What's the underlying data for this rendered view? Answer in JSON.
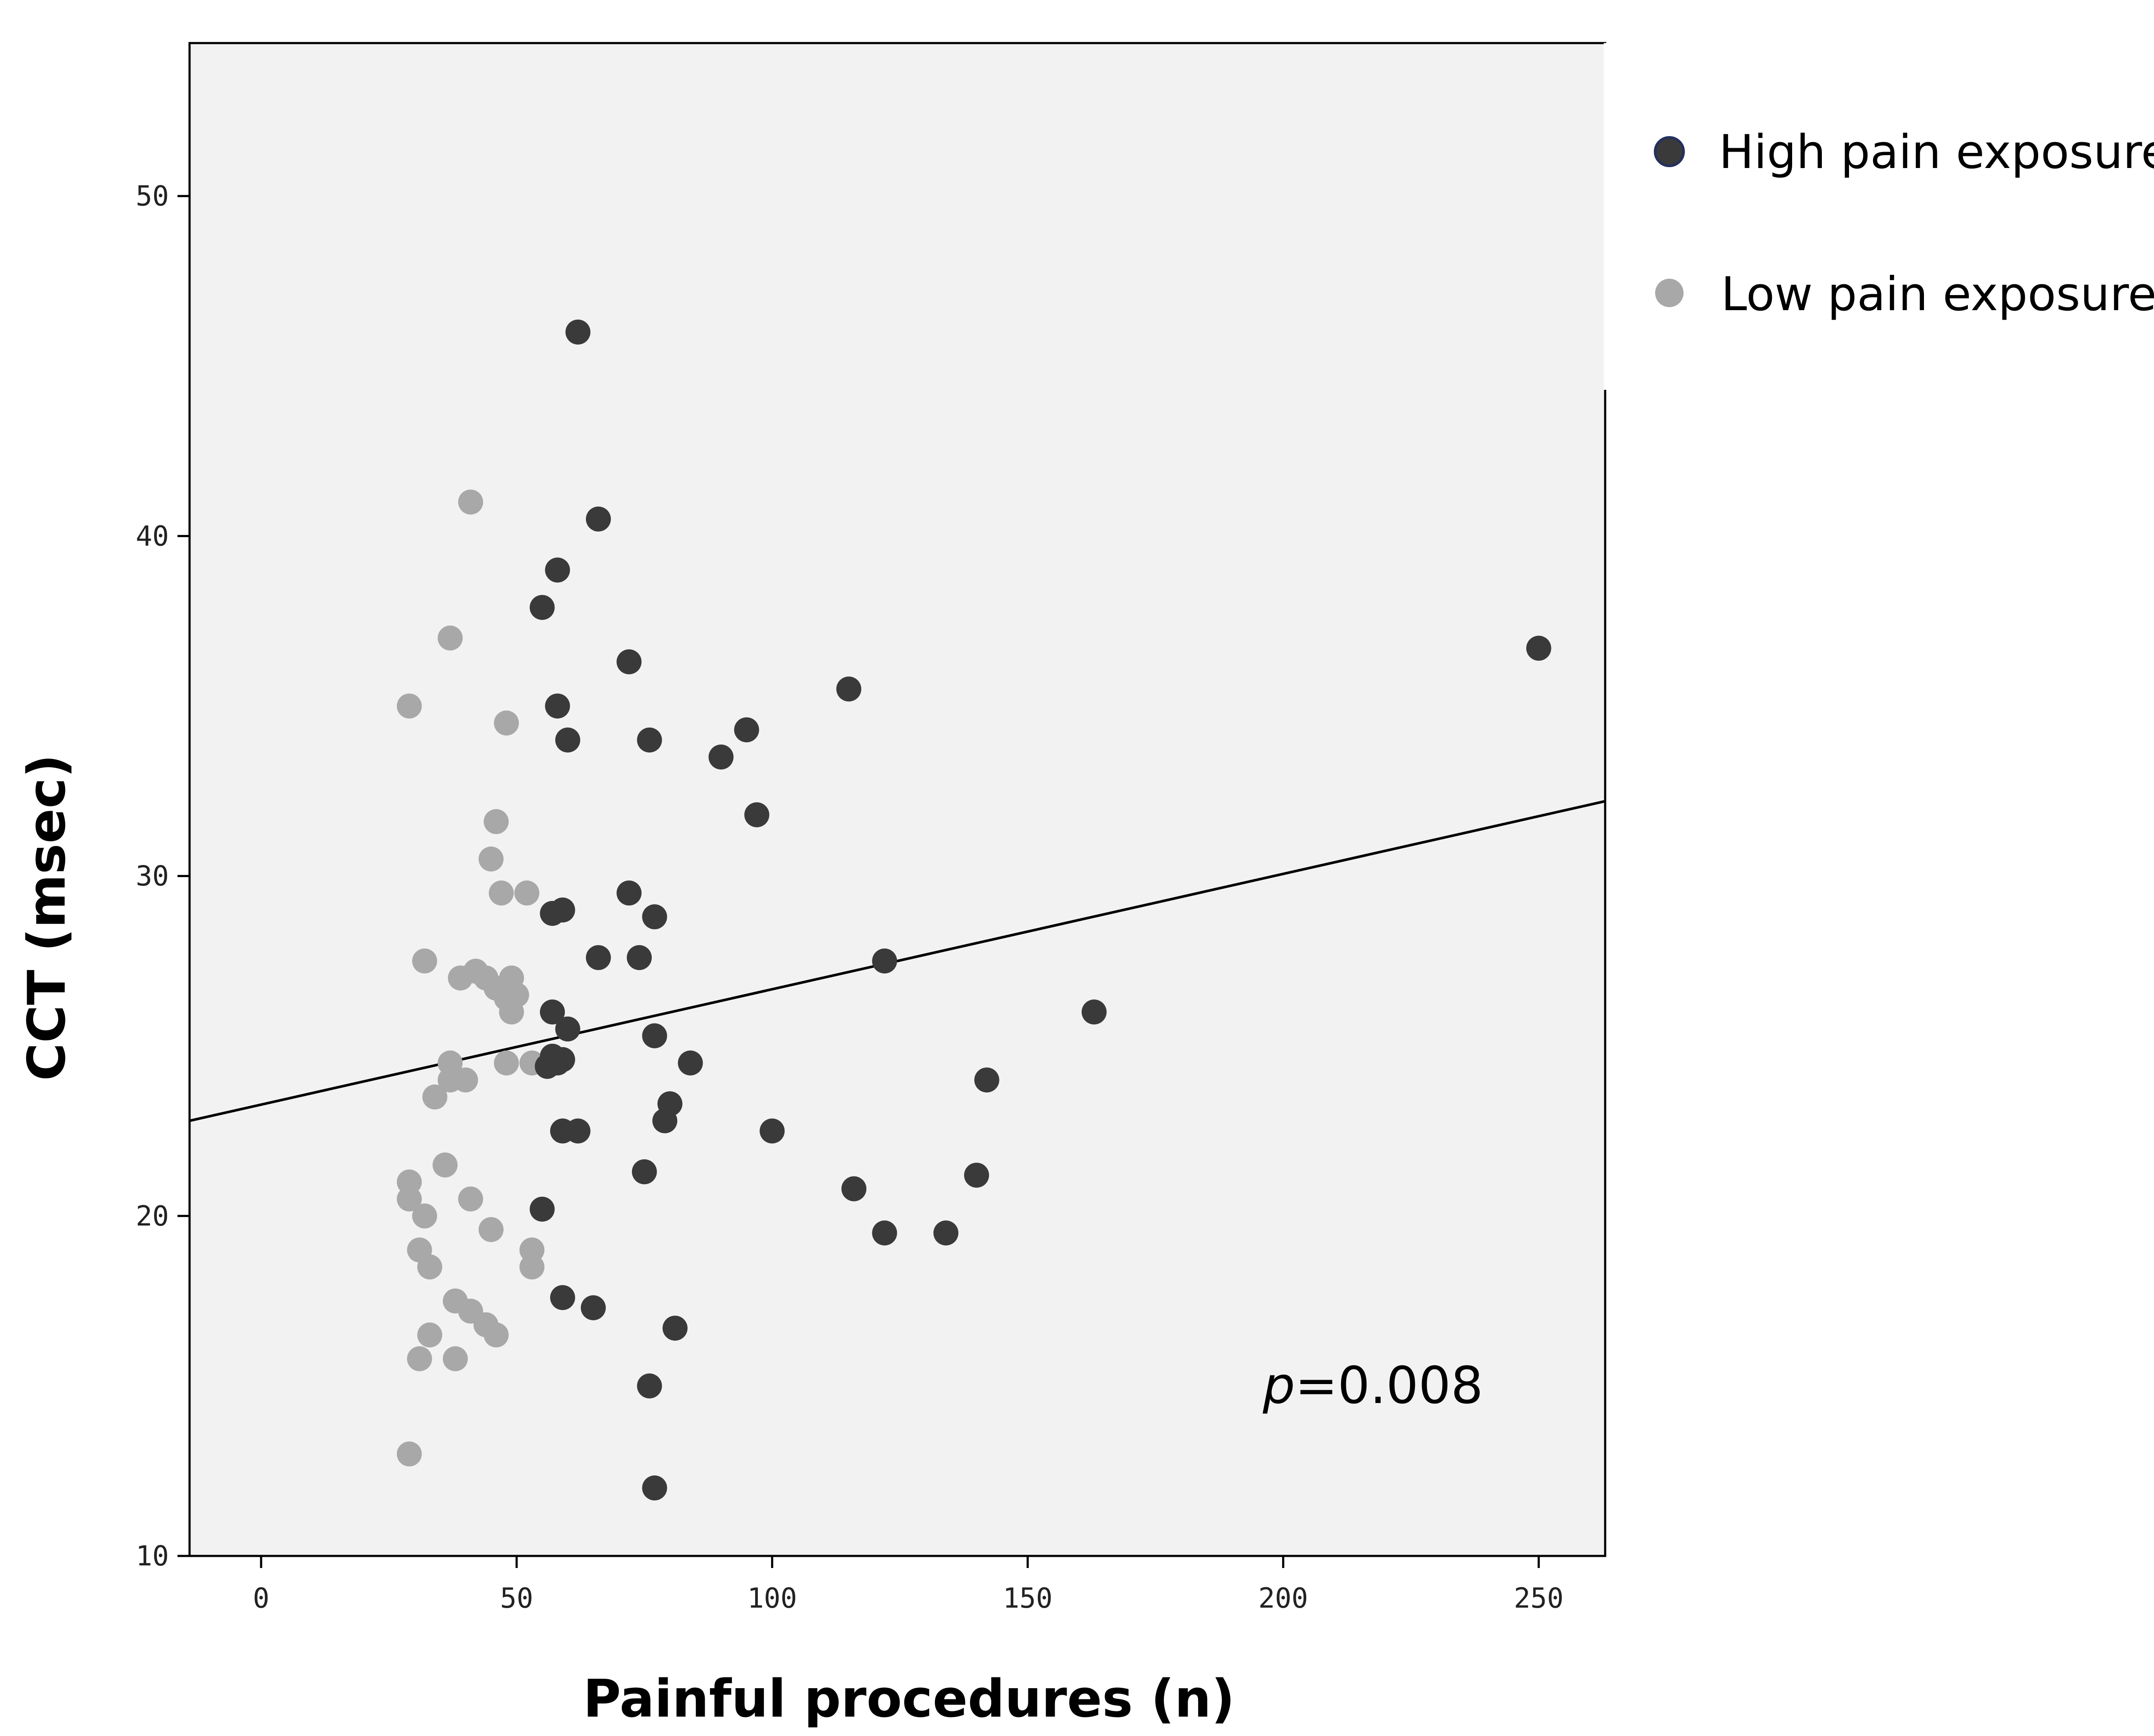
{
  "chart_data": {
    "type": "scatter",
    "title": "",
    "xlabel": "Painful procedures (n)",
    "ylabel": "CCT (msec)",
    "xlim": [
      -14,
      263
    ],
    "ylim": [
      10,
      54.5
    ],
    "xticks": [
      0,
      50,
      100,
      150,
      200,
      250
    ],
    "yticks": [
      10,
      20,
      30,
      40,
      50
    ],
    "grid": false,
    "legend_position": "right-top",
    "colors": {
      "plot_bg": "#f2f2f2",
      "high": "#3a3a3a",
      "low": "#a8a8a8",
      "fit_line": "#000000"
    },
    "series": [
      {
        "name": "High pain exposure",
        "color": "#3a3a3a",
        "points": [
          [
            62,
            46
          ],
          [
            66,
            40.5
          ],
          [
            58,
            39
          ],
          [
            55,
            37.9
          ],
          [
            72,
            36.3
          ],
          [
            250,
            36.7
          ],
          [
            115,
            35.5
          ],
          [
            58,
            35
          ],
          [
            60,
            34
          ],
          [
            76,
            34
          ],
          [
            95,
            34.3
          ],
          [
            90,
            33.5
          ],
          [
            97,
            31.8
          ],
          [
            72,
            29.5
          ],
          [
            57,
            28.9
          ],
          [
            59,
            29
          ],
          [
            77,
            28.8
          ],
          [
            66,
            27.6
          ],
          [
            74,
            27.6
          ],
          [
            122,
            27.5
          ],
          [
            57,
            26
          ],
          [
            163,
            26
          ],
          [
            60,
            25.5
          ],
          [
            77,
            25.3
          ],
          [
            57,
            24.7
          ],
          [
            58,
            24.5
          ],
          [
            56,
            24.4
          ],
          [
            59,
            24.6
          ],
          [
            84,
            24.5
          ],
          [
            142,
            24
          ],
          [
            80,
            23.3
          ],
          [
            79,
            22.8
          ],
          [
            59,
            22.5
          ],
          [
            62,
            22.5
          ],
          [
            100,
            22.5
          ],
          [
            75,
            21.3
          ],
          [
            140,
            21.2
          ],
          [
            116,
            20.8
          ],
          [
            55,
            20.2
          ],
          [
            122,
            19.5
          ],
          [
            134,
            19.5
          ],
          [
            59,
            17.6
          ],
          [
            65,
            17.3
          ],
          [
            81,
            16.7
          ],
          [
            76,
            15
          ],
          [
            77,
            12
          ]
        ]
      },
      {
        "name": "Low pain exposure",
        "color": "#a8a8a8",
        "points": [
          [
            41,
            41
          ],
          [
            37,
            37
          ],
          [
            29,
            35
          ],
          [
            48,
            34.5
          ],
          [
            46,
            31.6
          ],
          [
            45,
            30.5
          ],
          [
            47,
            29.5
          ],
          [
            52,
            29.5
          ],
          [
            32,
            27.5
          ],
          [
            42,
            27.2
          ],
          [
            39,
            27
          ],
          [
            44,
            27
          ],
          [
            49,
            27
          ],
          [
            46,
            26.7
          ],
          [
            48,
            26.4
          ],
          [
            50,
            26.5
          ],
          [
            49,
            26
          ],
          [
            37,
            24.5
          ],
          [
            48,
            24.5
          ],
          [
            53,
            24.5
          ],
          [
            37,
            24
          ],
          [
            40,
            24
          ],
          [
            34,
            23.5
          ],
          [
            36,
            21.5
          ],
          [
            29,
            21
          ],
          [
            29,
            20.5
          ],
          [
            41,
            20.5
          ],
          [
            32,
            20
          ],
          [
            45,
            19.6
          ],
          [
            31,
            19
          ],
          [
            53,
            19
          ],
          [
            33,
            18.5
          ],
          [
            53,
            18.5
          ],
          [
            38,
            17.5
          ],
          [
            41,
            17.2
          ],
          [
            44,
            16.8
          ],
          [
            33,
            16.5
          ],
          [
            46,
            16.5
          ],
          [
            31,
            15.8
          ],
          [
            38,
            15.8
          ],
          [
            29,
            13
          ]
        ]
      }
    ],
    "fit_line": {
      "label": "linear fit",
      "points": [
        [
          -14,
          22.8
        ],
        [
          263,
          32.2
        ]
      ]
    },
    "annotation": {
      "p_italic": "p",
      "p_value": "=0.008",
      "at": [
        196,
        14.5
      ]
    }
  },
  "legend": {
    "items": [
      {
        "label": "High pain exposure",
        "color": "#3a3a3a"
      },
      {
        "label": "Low pain exposure",
        "color": "#a8a8a8"
      }
    ]
  }
}
